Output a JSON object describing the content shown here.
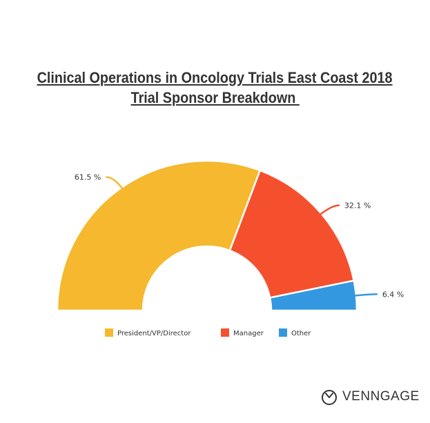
{
  "chart_data": {
    "type": "pie",
    "variant": "half-donut",
    "title_lines": [
      "Clinical Operations in Oncology Trials East Coast 2018",
      "Trial Sponsor Breakdown "
    ],
    "categories": [
      "President/VP/Director",
      "Manager",
      "Other"
    ],
    "values": [
      61.5,
      32.1,
      6.4
    ],
    "value_labels": [
      "61.5 %",
      "32.1 %",
      "6.4 %"
    ],
    "colors": [
      "#F5B82E",
      "#F5502E",
      "#3498E0"
    ],
    "legend_position": "bottom"
  },
  "brand": {
    "name": "VENNGAGE",
    "icon": "venngage-logo-icon"
  }
}
